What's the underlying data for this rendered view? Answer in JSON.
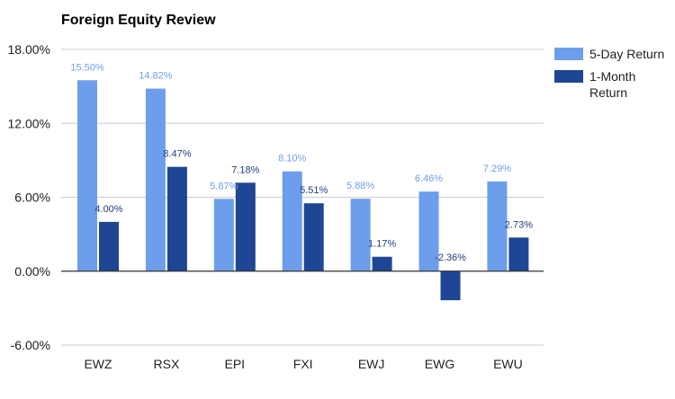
{
  "chart_data": {
    "type": "bar",
    "title": "Foreign Equity Review",
    "xlabel": "",
    "ylabel": "",
    "categories": [
      "EWZ",
      "RSX",
      "EPI",
      "FXI",
      "EWJ",
      "EWG",
      "EWU"
    ],
    "series": [
      {
        "name": "5-Day Return",
        "color": "#6d9eeb",
        "label_color": "#6d9eeb",
        "values": [
          15.5,
          14.82,
          5.87,
          8.1,
          5.88,
          6.46,
          7.29
        ],
        "labels": [
          "15.50%",
          "14.82%",
          "5.87%",
          "8.10%",
          "5.88%",
          "6.46%",
          "7.29%"
        ]
      },
      {
        "name": "1-Month Return",
        "name_lines": [
          "1-Month",
          "Return"
        ],
        "color": "#1f4694",
        "label_color": "#1f3d7a",
        "values": [
          4.0,
          8.47,
          7.18,
          5.51,
          1.17,
          -2.36,
          2.73
        ],
        "labels": [
          "4.00%",
          "8.47%",
          "7.18%",
          "5.51%",
          "1.17%",
          "-2.36%",
          "2.73%"
        ]
      }
    ],
    "ylim": [
      -6,
      18
    ],
    "yticks": [
      -6,
      0,
      6,
      12,
      18
    ],
    "ytick_labels": [
      "-6.00%",
      "0.00%",
      "6.00%",
      "12.00%",
      "18.00%"
    ],
    "grid": true,
    "legend_position": "right"
  }
}
